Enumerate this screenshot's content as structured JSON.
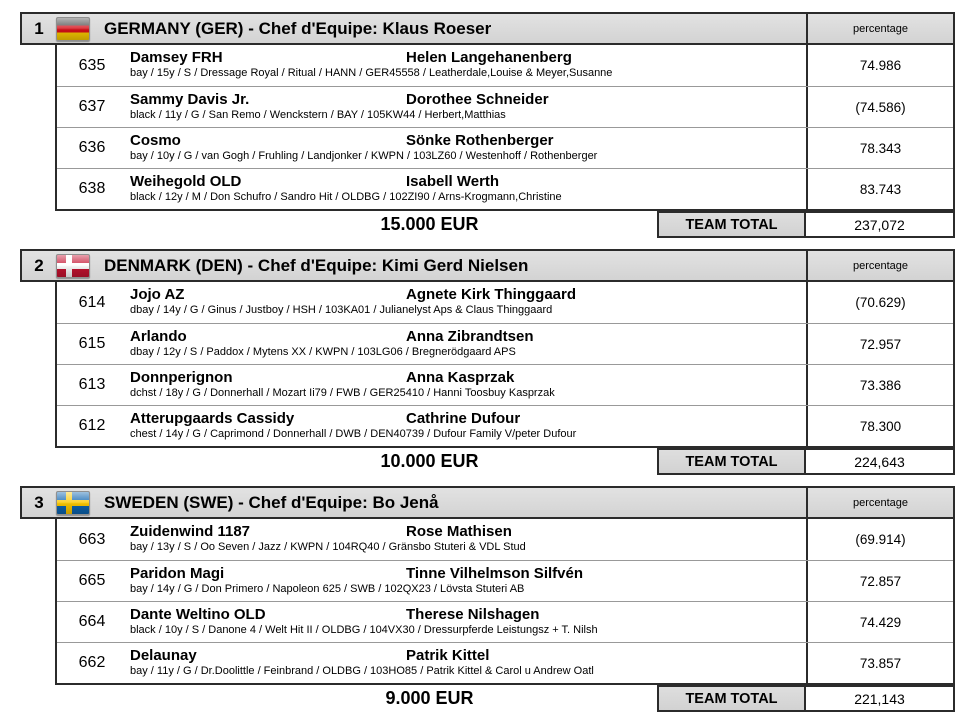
{
  "labels": {
    "percentage": "percentage",
    "team_total": "TEAM TOTAL"
  },
  "colors": {
    "header_bg": "#d8d8d8",
    "border_dark": "#2b2b2b",
    "row_divider": "#999999"
  },
  "teams": [
    {
      "rank": "1",
      "flag": "germany",
      "title": "GERMANY (GER) - Chef d'Equipe: Klaus Roeser",
      "prize": "15.000 EUR",
      "team_total": "237,072",
      "riders": [
        {
          "number": "635",
          "horse": "Damsey FRH",
          "rider": "Helen Langehanenberg",
          "details": "bay / 15y / S / Dressage Royal / Ritual / HANN / GER45558 / Leatherdale,Louise & Meyer,Susanne",
          "percentage": "74.986"
        },
        {
          "number": "637",
          "horse": "Sammy Davis Jr.",
          "rider": "Dorothee Schneider",
          "details": "black / 11y / G / San Remo / Wenckstern / BAY / 105KW44 / Herbert,Matthias",
          "percentage": "(74.586)"
        },
        {
          "number": "636",
          "horse": "Cosmo",
          "rider": "Sönke Rothenberger",
          "details": "bay / 10y / G / van Gogh / Fruhling / Landjonker / KWPN / 103LZ60 / Westenhoff / Rothenberger",
          "percentage": "78.343"
        },
        {
          "number": "638",
          "horse": "Weihegold OLD",
          "rider": "Isabell Werth",
          "details": "black / 12y / M / Don Schufro / Sandro Hit / OLDBG / 102ZI90 / Arns-Krogmann,Christine",
          "percentage": "83.743"
        }
      ]
    },
    {
      "rank": "2",
      "flag": "denmark",
      "title": "DENMARK (DEN) - Chef d'Equipe: Kimi Gerd Nielsen",
      "prize": "10.000 EUR",
      "team_total": "224,643",
      "riders": [
        {
          "number": "614",
          "horse": "Jojo AZ",
          "rider": "Agnete Kirk Thinggaard",
          "details": "dbay / 14y / G / Ginus / Justboy / HSH / 103KA01 / Julianelyst Aps & Claus Thinggaard",
          "percentage": "(70.629)"
        },
        {
          "number": "615",
          "horse": "Arlando",
          "rider": "Anna Zibrandtsen",
          "details": "dbay / 12y / S / Paddox / Mytens XX / KWPN / 103LG06 / Bregnerödgaard APS",
          "percentage": "72.957"
        },
        {
          "number": "613",
          "horse": "Donnperignon",
          "rider": "Anna Kasprzak",
          "details": "dchst / 18y / G / Donnerhall / Mozart Ii79 / FWB / GER25410 / Hanni Toosbuy Kasprzak",
          "percentage": "73.386"
        },
        {
          "number": "612",
          "horse": "Atterupgaards Cassidy",
          "rider": "Cathrine Dufour",
          "details": "chest / 14y / G / Caprimond / Donnerhall / DWB / DEN40739 / Dufour Family V/peter Dufour",
          "percentage": "78.300"
        }
      ]
    },
    {
      "rank": "3",
      "flag": "sweden",
      "title": "SWEDEN (SWE) - Chef d'Equipe: Bo Jenå",
      "prize": "9.000 EUR",
      "team_total": "221,143",
      "riders": [
        {
          "number": "663",
          "horse": "Zuidenwind 1187",
          "rider": "Rose Mathisen",
          "details": "bay / 13y / S / Oo Seven / Jazz / KWPN / 104RQ40 / Gränsbo Stuteri & VDL Stud",
          "percentage": "(69.914)"
        },
        {
          "number": "665",
          "horse": "Paridon Magi",
          "rider": "Tinne Vilhelmson Silfvén",
          "details": "bay / 14y / G / Don Primero / Napoleon 625 / SWB / 102QX23 / Lövsta Stuteri AB",
          "percentage": "72.857"
        },
        {
          "number": "664",
          "horse": "Dante Weltino OLD",
          "rider": "Therese Nilshagen",
          "details": "black / 10y / S / Danone 4 / Welt Hit II / OLDBG / 104VX30 / Dressurpferde Leistungsz + T. Nilsh",
          "percentage": "74.429"
        },
        {
          "number": "662",
          "horse": "Delaunay",
          "rider": "Patrik Kittel",
          "details": "bay / 11y / G / Dr.Doolittle / Feinbrand / OLDBG / 103HO85 / Patrik Kittel & Carol u Andrew Oatl",
          "percentage": "73.857"
        }
      ]
    }
  ]
}
